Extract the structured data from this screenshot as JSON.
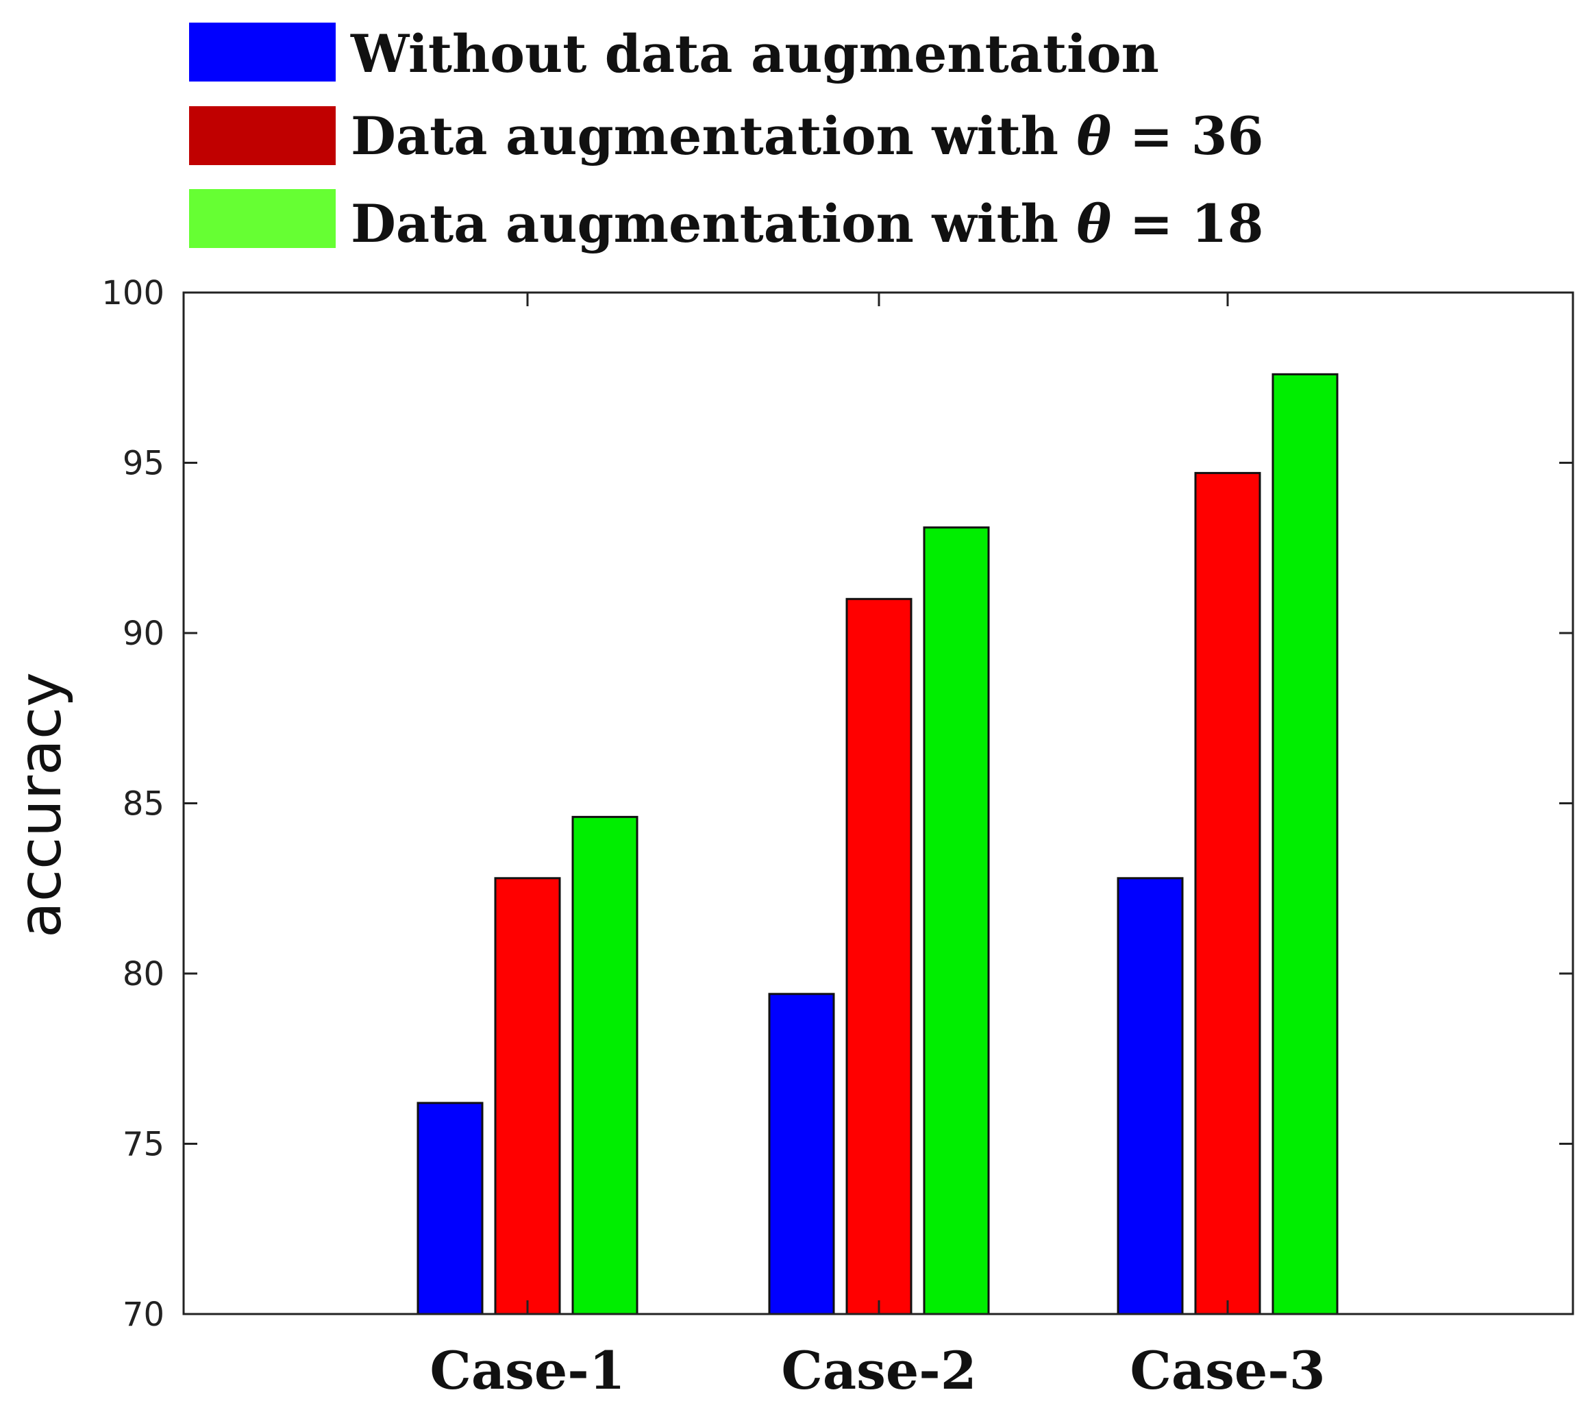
{
  "chart_data": {
    "type": "bar",
    "categories": [
      "Case-1",
      "Case-2",
      "Case-3"
    ],
    "series": [
      {
        "name": "Without data augmentation",
        "color": "#0000ff",
        "values": [
          76.2,
          79.4,
          82.8
        ]
      },
      {
        "name": "Data augmentation with θ = 36",
        "color": "#ff0000",
        "values": [
          82.8,
          91.0,
          94.7
        ]
      },
      {
        "name": "Data augmentation with θ = 18",
        "color": "#00ee00",
        "values": [
          84.6,
          93.1,
          97.6
        ]
      }
    ],
    "legend": {
      "placement": "top",
      "swatch_colors": [
        "#0000ff",
        "#c00000",
        "#66ff33"
      ]
    },
    "ylabel": "accuracy",
    "xlabel": "",
    "ylim": [
      70,
      100
    ],
    "yticks": [
      70,
      75,
      80,
      85,
      90,
      95,
      100
    ],
    "grid": false
  }
}
